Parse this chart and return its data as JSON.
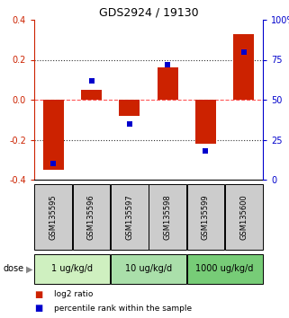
{
  "title": "GDS2924 / 19130",
  "samples": [
    "GSM135595",
    "GSM135596",
    "GSM135597",
    "GSM135598",
    "GSM135599",
    "GSM135600"
  ],
  "log2_ratios": [
    -0.35,
    0.05,
    -0.08,
    0.16,
    -0.22,
    0.33
  ],
  "percentile_ranks": [
    10,
    62,
    35,
    72,
    18,
    80
  ],
  "ylim_left": [
    -0.4,
    0.4
  ],
  "ylim_right": [
    0,
    100
  ],
  "yticks_left": [
    -0.4,
    -0.2,
    0.0,
    0.2,
    0.4
  ],
  "yticks_right": [
    0,
    25,
    50,
    75,
    100
  ],
  "ytick_labels_right": [
    "0",
    "25",
    "50",
    "75",
    "100%"
  ],
  "doses": [
    {
      "label": "1 ug/kg/d",
      "samples": [
        0,
        1
      ],
      "color": "#cff0c0"
    },
    {
      "label": "10 ug/kg/d",
      "samples": [
        2,
        3
      ],
      "color": "#aadfaa"
    },
    {
      "label": "1000 ug/kg/d",
      "samples": [
        4,
        5
      ],
      "color": "#77cc77"
    }
  ],
  "bar_color_red": "#cc2200",
  "dot_color_blue": "#0000cc",
  "sample_bg_color": "#cccccc",
  "bar_width": 0.55,
  "dot_size": 25,
  "hline_zero_color": "#ff5555",
  "hline_dotted_color": "#333333",
  "left_axis_color": "#cc2200",
  "right_axis_color": "#0000cc",
  "dose_label_color": "#888888"
}
